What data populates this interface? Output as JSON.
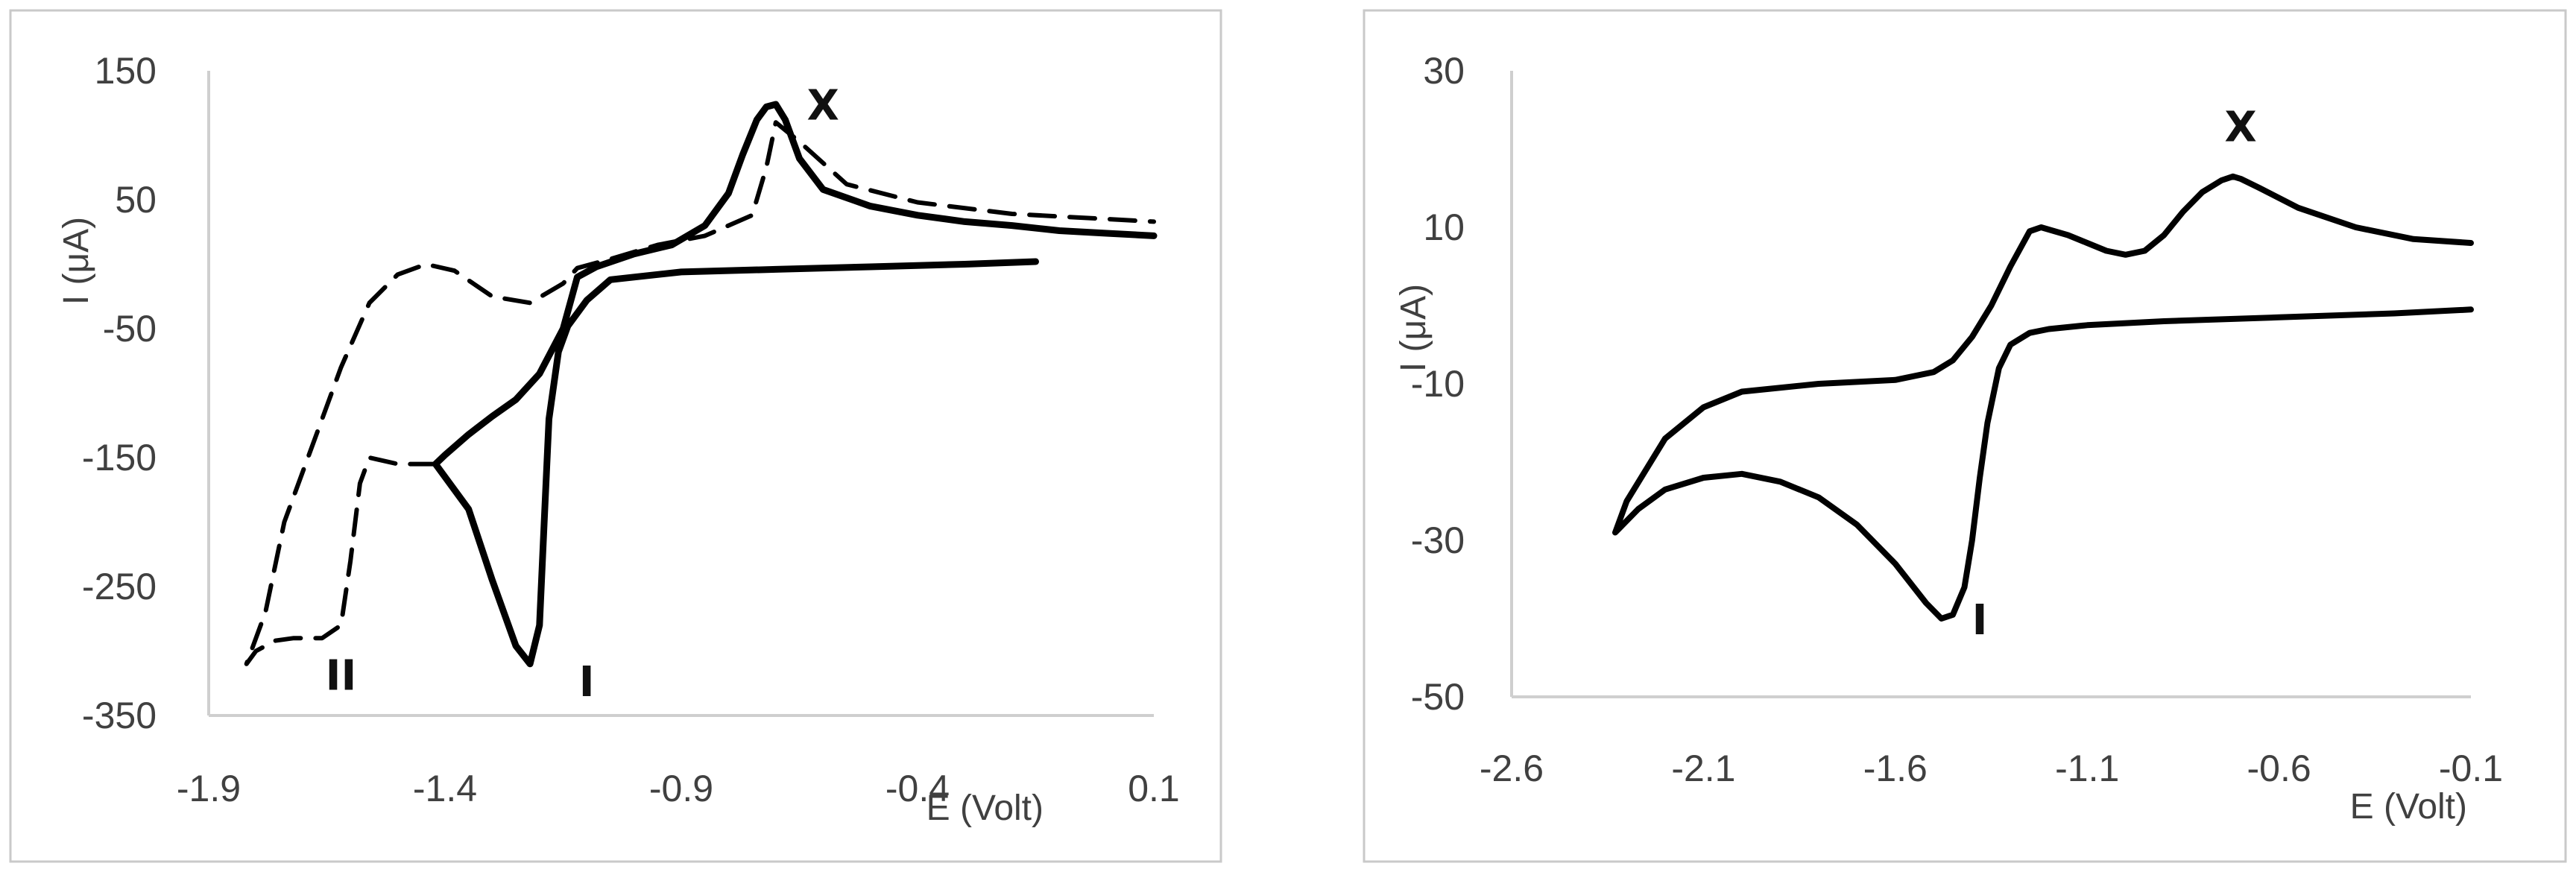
{
  "chart_data": [
    {
      "type": "line",
      "xlabel": "E (Volt)",
      "ylabel": "I (μA)",
      "xlim": [
        -1.9,
        0.1
      ],
      "ylim": [
        -350,
        150
      ],
      "x_ticks": [
        "-1.9",
        "-1.4",
        "-0.9",
        "-0.4",
        "0.1"
      ],
      "y_ticks": [
        "150",
        "50",
        "-50",
        "-150",
        "-250",
        "-350"
      ],
      "grid": false,
      "series": [
        {
          "style": "solid",
          "x": [
            -0.15,
            -0.3,
            -0.5,
            -0.7,
            -0.9,
            -1.0,
            -1.05,
            -1.1,
            -1.14,
            -1.16,
            -1.18,
            -1.19,
            -1.2,
            -1.22,
            -1.25,
            -1.3,
            -1.35,
            -1.42,
            -1.4,
            -1.35,
            -1.3,
            -1.25,
            -1.2,
            -1.15,
            -1.12,
            -1.08,
            -1.0,
            -0.92,
            -0.85,
            -0.8,
            -0.77,
            -0.74,
            -0.72,
            -0.7,
            -0.68,
            -0.65,
            -0.6,
            -0.5,
            -0.4,
            -0.3,
            -0.2,
            -0.1,
            0.0,
            0.1
          ],
          "y": [
            2,
            0,
            -2,
            -4,
            -6,
            -10,
            -12,
            -28,
            -48,
            -68,
            -120,
            -200,
            -280,
            -310,
            -296,
            -245,
            -190,
            -155,
            -148,
            -132,
            -118,
            -105,
            -85,
            -50,
            -10,
            -2,
            8,
            15,
            30,
            55,
            85,
            112,
            122,
            124,
            112,
            82,
            58,
            45,
            38,
            33,
            30,
            26,
            24,
            22
          ]
        },
        {
          "style": "dashed",
          "x": [
            -1.42,
            -1.5,
            -1.56,
            -1.58,
            -1.6,
            -1.62,
            -1.66,
            -1.72,
            -1.76,
            -1.8,
            -1.82,
            -1.78,
            -1.74,
            -1.68,
            -1.62,
            -1.56,
            -1.5,
            -1.44,
            -1.38,
            -1.3,
            -1.22,
            -1.15,
            -1.12,
            -1.05,
            -0.95,
            -0.85,
            -0.75,
            -0.72,
            -0.7,
            -0.65,
            -0.55,
            -0.4,
            -0.2,
            0.0,
            0.1
          ],
          "y": [
            -155,
            -155,
            -150,
            -170,
            -230,
            -280,
            -290,
            -290,
            -292,
            -300,
            -310,
            -270,
            -200,
            -140,
            -80,
            -30,
            -8,
            0,
            -5,
            -25,
            -30,
            -15,
            -3,
            4,
            15,
            22,
            38,
            75,
            110,
            95,
            62,
            48,
            39,
            35,
            33
          ]
        }
      ],
      "annotations": [
        {
          "text": "X",
          "x": -0.6,
          "y": 112
        },
        {
          "text": "I",
          "x": -1.1,
          "y": -335
        },
        {
          "text": "II",
          "x": -1.62,
          "y": -330
        }
      ]
    },
    {
      "type": "line",
      "xlabel": "E (Volt)",
      "ylabel": "I (μA)",
      "xlim": [
        -2.6,
        -0.1
      ],
      "ylim": [
        -50,
        30
      ],
      "x_ticks": [
        "-2.6",
        "-2.1",
        "-1.6",
        "-1.1",
        "-0.6",
        "-0.1"
      ],
      "y_ticks": [
        "30",
        "10",
        "-10",
        "-30",
        "-50"
      ],
      "grid": false,
      "series": [
        {
          "style": "solid",
          "x": [
            -0.1,
            -0.3,
            -0.6,
            -0.9,
            -1.1,
            -1.2,
            -1.25,
            -1.3,
            -1.33,
            -1.36,
            -1.38,
            -1.4,
            -1.42,
            -1.45,
            -1.48,
            -1.52,
            -1.6,
            -1.7,
            -1.8,
            -1.9,
            -2.0,
            -2.1,
            -2.2,
            -2.27,
            -2.32,
            -2.33,
            -2.3,
            -2.2,
            -2.1,
            -2.0,
            -1.8,
            -1.6,
            -1.5,
            -1.45,
            -1.4,
            -1.35,
            -1.3,
            -1.25,
            -1.22,
            -1.15,
            -1.1,
            -1.05,
            -1.0,
            -0.95,
            -0.9,
            -0.85,
            -0.8,
            -0.75,
            -0.72,
            -0.7,
            -0.65,
            -0.55,
            -0.4,
            -0.25,
            -0.1
          ],
          "y": [
            -0.5,
            -1,
            -1.5,
            -2,
            -2.5,
            -3,
            -3.5,
            -5,
            -8,
            -15,
            -22,
            -30,
            -36,
            -39.5,
            -40,
            -38,
            -33,
            -28,
            -24.5,
            -22.5,
            -21.5,
            -22,
            -23.5,
            -26,
            -28.5,
            -29,
            -25,
            -17,
            -13,
            -11,
            -10,
            -9.5,
            -8.5,
            -7,
            -4,
            0,
            5,
            9.5,
            10,
            9,
            8,
            7,
            6.5,
            7,
            9,
            12,
            14.5,
            16,
            16.5,
            16.2,
            15,
            12.5,
            10,
            8.5,
            8
          ]
        }
      ],
      "annotations": [
        {
          "text": "X",
          "x": -0.7,
          "y": 21
        },
        {
          "text": "I",
          "x": -1.38,
          "y": -42
        }
      ]
    }
  ]
}
